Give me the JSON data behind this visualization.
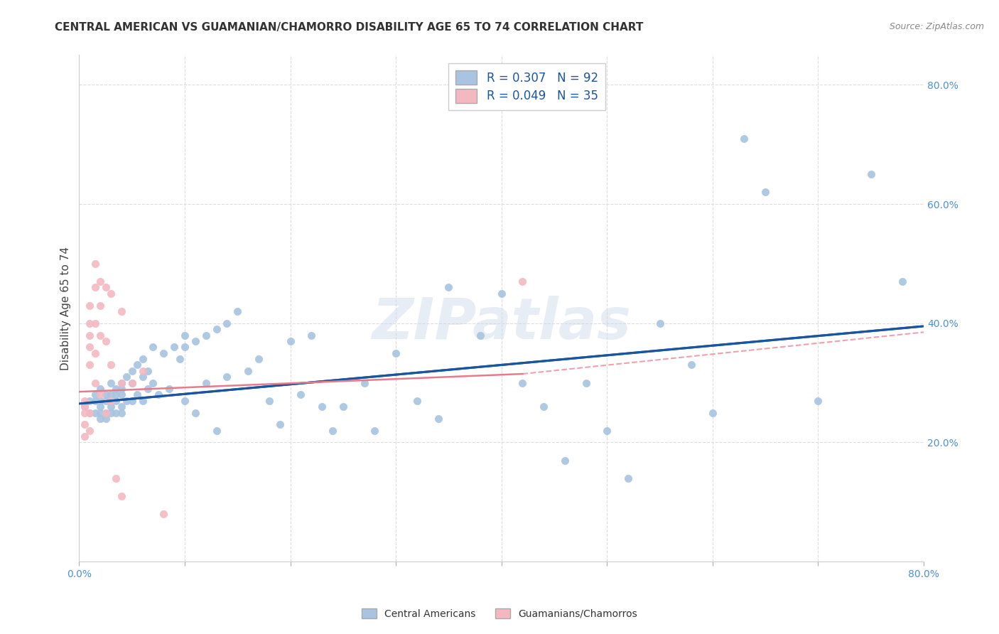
{
  "title": "CENTRAL AMERICAN VS GUAMANIAN/CHAMORRO DISABILITY AGE 65 TO 74 CORRELATION CHART",
  "source": "Source: ZipAtlas.com",
  "ylabel": "Disability Age 65 to 74",
  "ytick_labels": [
    "20.0%",
    "40.0%",
    "60.0%",
    "80.0%"
  ],
  "ytick_values": [
    0.2,
    0.4,
    0.6,
    0.8
  ],
  "xlim": [
    0.0,
    0.8
  ],
  "ylim": [
    0.0,
    0.85
  ],
  "legend_blue_label": "Central Americans",
  "legend_pink_label": "Guamanians/Chamorros",
  "R_blue": 0.307,
  "N_blue": 92,
  "R_pink": 0.049,
  "N_pink": 35,
  "blue_color": "#a8c4e0",
  "pink_color": "#f4b8c1",
  "line_blue": "#1a56a0",
  "line_pink": "#e87a8a",
  "watermark": "ZIPatlas",
  "blue_points_x": [
    0.005,
    0.01,
    0.01,
    0.015,
    0.015,
    0.015,
    0.02,
    0.02,
    0.02,
    0.02,
    0.02,
    0.025,
    0.025,
    0.025,
    0.025,
    0.03,
    0.03,
    0.03,
    0.03,
    0.03,
    0.035,
    0.035,
    0.035,
    0.035,
    0.04,
    0.04,
    0.04,
    0.04,
    0.04,
    0.045,
    0.045,
    0.05,
    0.05,
    0.05,
    0.055,
    0.055,
    0.06,
    0.06,
    0.06,
    0.065,
    0.065,
    0.07,
    0.07,
    0.075,
    0.08,
    0.085,
    0.09,
    0.095,
    0.1,
    0.1,
    0.1,
    0.11,
    0.11,
    0.12,
    0.12,
    0.13,
    0.13,
    0.14,
    0.14,
    0.15,
    0.16,
    0.17,
    0.18,
    0.19,
    0.2,
    0.21,
    0.22,
    0.23,
    0.24,
    0.25,
    0.27,
    0.28,
    0.3,
    0.32,
    0.34,
    0.35,
    0.38,
    0.4,
    0.42,
    0.44,
    0.46,
    0.48,
    0.5,
    0.52,
    0.55,
    0.58,
    0.6,
    0.63,
    0.65,
    0.7,
    0.75,
    0.78
  ],
  "blue_points_y": [
    0.26,
    0.27,
    0.25,
    0.28,
    0.27,
    0.25,
    0.29,
    0.27,
    0.26,
    0.25,
    0.24,
    0.28,
    0.27,
    0.25,
    0.24,
    0.3,
    0.28,
    0.27,
    0.26,
    0.25,
    0.29,
    0.28,
    0.27,
    0.25,
    0.3,
    0.29,
    0.28,
    0.26,
    0.25,
    0.31,
    0.27,
    0.32,
    0.3,
    0.27,
    0.33,
    0.28,
    0.34,
    0.31,
    0.27,
    0.32,
    0.29,
    0.36,
    0.3,
    0.28,
    0.35,
    0.29,
    0.36,
    0.34,
    0.38,
    0.36,
    0.27,
    0.37,
    0.25,
    0.38,
    0.3,
    0.39,
    0.22,
    0.4,
    0.31,
    0.42,
    0.32,
    0.34,
    0.27,
    0.23,
    0.37,
    0.28,
    0.38,
    0.26,
    0.22,
    0.26,
    0.3,
    0.22,
    0.35,
    0.27,
    0.24,
    0.46,
    0.38,
    0.45,
    0.3,
    0.26,
    0.17,
    0.3,
    0.22,
    0.14,
    0.4,
    0.33,
    0.25,
    0.71,
    0.62,
    0.27,
    0.65,
    0.47
  ],
  "pink_points_x": [
    0.005,
    0.005,
    0.005,
    0.005,
    0.005,
    0.01,
    0.01,
    0.01,
    0.01,
    0.01,
    0.01,
    0.01,
    0.015,
    0.015,
    0.015,
    0.015,
    0.015,
    0.02,
    0.02,
    0.02,
    0.02,
    0.025,
    0.025,
    0.025,
    0.03,
    0.03,
    0.03,
    0.035,
    0.04,
    0.04,
    0.04,
    0.05,
    0.06,
    0.08,
    0.42
  ],
  "pink_points_y": [
    0.27,
    0.26,
    0.25,
    0.23,
    0.21,
    0.43,
    0.4,
    0.38,
    0.36,
    0.33,
    0.25,
    0.22,
    0.5,
    0.46,
    0.4,
    0.35,
    0.3,
    0.47,
    0.43,
    0.38,
    0.28,
    0.46,
    0.37,
    0.25,
    0.45,
    0.33,
    0.27,
    0.14,
    0.42,
    0.3,
    0.11,
    0.3,
    0.32,
    0.08,
    0.47
  ],
  "background_color": "#ffffff",
  "grid_color": "#dddddd",
  "blue_line_start_x": 0.0,
  "blue_line_end_x": 0.8,
  "blue_line_start_y": 0.265,
  "blue_line_end_y": 0.395,
  "pink_line_start_x": 0.0,
  "pink_line_end_x": 0.42,
  "pink_line_start_y": 0.285,
  "pink_line_end_y": 0.315
}
